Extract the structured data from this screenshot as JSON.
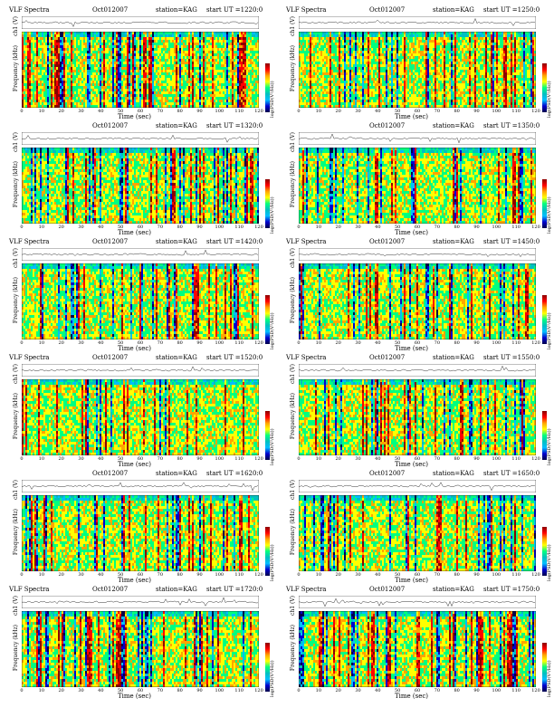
{
  "colors": {
    "colormap": [
      "#00004a",
      "#0000cd",
      "#00bfff",
      "#00c0c0",
      "#00ff7f",
      "#ffff00",
      "#ffa500",
      "#ff0000",
      "#8b0000"
    ]
  },
  "panels": [
    {
      "left": "VLF Spectra",
      "date": "Oct012007",
      "station": "station=KAG",
      "ut": "start UT =1220:0"
    },
    {
      "left": "VLF Spectra",
      "date": "Oct012007",
      "station": "station=KAG",
      "ut": "start UT =1250:0"
    },
    {
      "left": "",
      "date": "Oct012007",
      "station": "station=KAG",
      "ut": "start UT =1320:0"
    },
    {
      "left": "",
      "date": "Oct012007",
      "station": "station=KAG",
      "ut": "start UT =1350:0"
    },
    {
      "left": "VLF Spectra",
      "date": "Oct012007",
      "station": "station=KAG",
      "ut": "start UT =1420:0"
    },
    {
      "left": "VLF Spectra",
      "date": "Oct012007",
      "station": "station=KAG",
      "ut": "start UT =1450:0"
    },
    {
      "left": "VLF Spectra",
      "date": "Oct012007",
      "station": "station=KAG",
      "ut": "start UT =1520:0"
    },
    {
      "left": "VLF Spectra",
      "date": "Oct012007",
      "station": "station=KAG",
      "ut": "start UT =1550:0"
    },
    {
      "left": "",
      "date": "Oct012007",
      "station": "station=KAG",
      "ut": "start UT =1620:0"
    },
    {
      "left": "",
      "date": "Oct012007",
      "station": "station=KAG",
      "ut": "start UT =1650:0"
    },
    {
      "left": "VLF Spectra",
      "date": "Oct012007",
      "station": "station=KAG",
      "ut": "start UT =1720:0"
    },
    {
      "left": "VLF Spectra",
      "date": "Oct012007",
      "station": "station=KAG",
      "ut": "start UT =1750:0"
    }
  ],
  "labels": {
    "ch_axis": "ch1 (V)",
    "freq_axis": "Frequency (kHz)",
    "time_axis": "Time (sec)",
    "colorbar": "log(PSD(V²/Hz))"
  },
  "chart_data": {
    "type": "heatmap",
    "x_ticks": [
      0,
      10,
      20,
      30,
      40,
      50,
      60,
      70,
      80,
      90,
      100,
      110,
      120
    ],
    "y_ticks": [
      0,
      2,
      4,
      6,
      8,
      10
    ],
    "ch_ticks": [
      "0.20",
      "0.00",
      "-0.20"
    ],
    "xlim": [
      0,
      120
    ],
    "ylim": [
      0,
      10
    ],
    "grid": false
  }
}
